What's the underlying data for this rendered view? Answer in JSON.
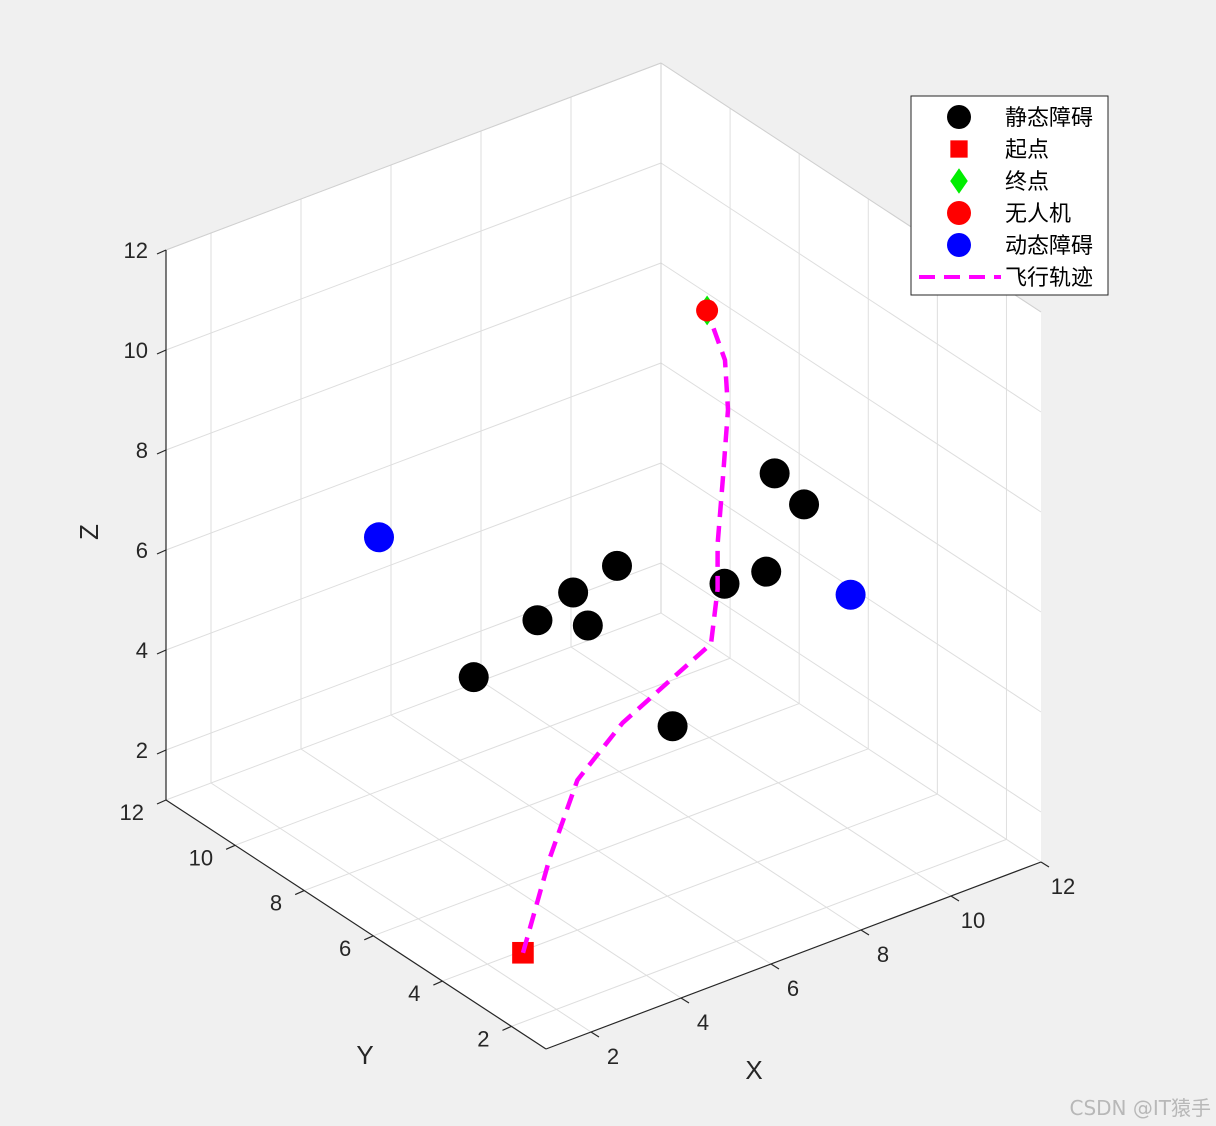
{
  "chart_data": {
    "type": "scatter3d",
    "xlabel": "X",
    "ylabel": "Y",
    "zlabel": "Z",
    "xlim": [
      1,
      12
    ],
    "ylim": [
      1,
      12
    ],
    "zlim": [
      1,
      12
    ],
    "xticks": [
      "2",
      "4",
      "6",
      "8",
      "10",
      "12"
    ],
    "yticks": [
      "2",
      "4",
      "6",
      "8",
      "10",
      "12"
    ],
    "zticks": [
      "2",
      "4",
      "6",
      "8",
      "10",
      "12"
    ],
    "grid": true,
    "legend_position": "top-right",
    "series": [
      {
        "name": "静态障碍",
        "marker": "circle",
        "color": "#000000",
        "points": [
          [
            5.0,
            5.0,
            6.3
          ],
          [
            4.0,
            7.0,
            4.7
          ],
          [
            6.8,
            6.5,
            6.2
          ],
          [
            5.8,
            7.5,
            5.0
          ],
          [
            7.5,
            4.3,
            6.6
          ],
          [
            8.0,
            3.5,
            9.0
          ],
          [
            6.5,
            4.5,
            4.0
          ],
          [
            10.5,
            7.0,
            4.6
          ],
          [
            8.5,
            3.3,
            8.3
          ],
          [
            6.9,
            7.9,
            5.0
          ]
        ]
      },
      {
        "name": "起点",
        "marker": "square",
        "color": "#ff0000",
        "points": [
          [
            2.1,
            3.1,
            1.6
          ]
        ]
      },
      {
        "name": "终点",
        "marker": "diamond",
        "color": "#00ee00",
        "points": [
          [
            9.8,
            7.8,
            9.7
          ]
        ]
      },
      {
        "name": "无人机",
        "marker": "circle",
        "color": "#ff0000",
        "points": [
          [
            9.8,
            7.8,
            9.7
          ]
        ]
      },
      {
        "name": "动态障碍",
        "marker": "circle",
        "color": "#0000ff",
        "points": [
          [
            3.2,
            8.7,
            7.0
          ],
          [
            11.3,
            5.6,
            4.5
          ]
        ]
      },
      {
        "name": "飞行轨迹",
        "marker": "dashed-line",
        "color": "#ff00ff",
        "points": [
          [
            2.1,
            3.1,
            1.6
          ],
          [
            3.0,
            3.5,
            3.0
          ],
          [
            4.0,
            4.0,
            4.0
          ],
          [
            5.0,
            4.0,
            4.8
          ],
          [
            6.5,
            4.0,
            5.5
          ],
          [
            7.2,
            4.3,
            5.5
          ],
          [
            7.5,
            4.5,
            6.4
          ],
          [
            7.5,
            4.5,
            7.3
          ],
          [
            8.0,
            5.0,
            8.2
          ],
          [
            8.5,
            5.5,
            9.2
          ],
          [
            9.2,
            6.5,
            9.5
          ],
          [
            9.8,
            7.8,
            9.7
          ]
        ]
      }
    ]
  },
  "watermark": "CSDN @IT猿手"
}
